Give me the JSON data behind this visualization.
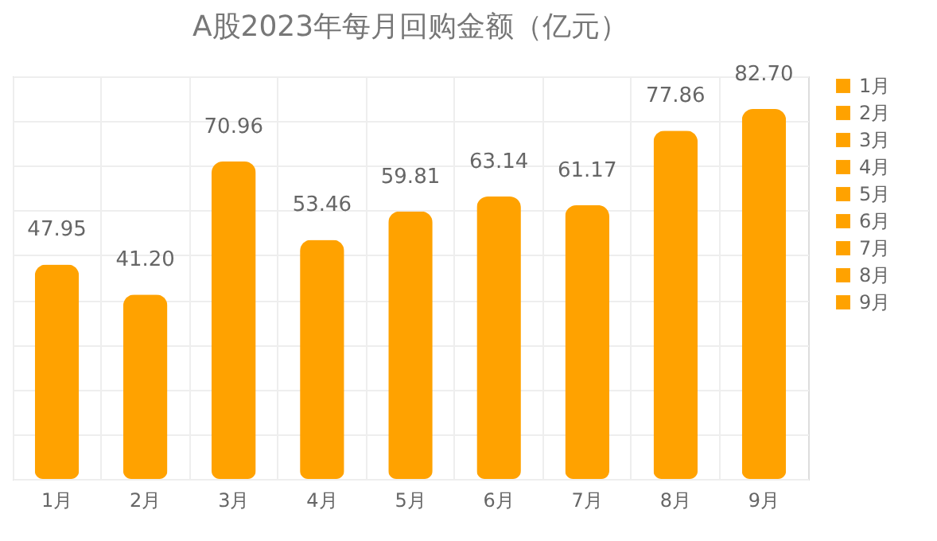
{
  "chart_data": {
    "type": "bar",
    "title": "A股2023年每月回购金额（亿元）",
    "categories": [
      "1月",
      "2月",
      "3月",
      "4月",
      "5月",
      "6月",
      "7月",
      "8月",
      "9月"
    ],
    "series": [
      {
        "name": "1月",
        "color": "#ffa200",
        "values": [
          47.95,
          null,
          null,
          null,
          null,
          null,
          null,
          null,
          null
        ],
        "value_labels": [
          "47.95",
          null,
          null,
          null,
          null,
          null,
          null,
          null,
          null
        ]
      },
      {
        "name": "2月",
        "color": "#ffa200",
        "values": [
          null,
          41.2,
          null,
          null,
          null,
          null,
          null,
          null,
          null
        ],
        "value_labels": [
          null,
          "41.20",
          null,
          null,
          null,
          null,
          null,
          null,
          null
        ]
      },
      {
        "name": "3月",
        "color": "#ffa200",
        "values": [
          null,
          null,
          70.96,
          null,
          null,
          null,
          null,
          null,
          null
        ],
        "value_labels": [
          null,
          null,
          "70.96",
          null,
          null,
          null,
          null,
          null,
          null
        ]
      },
      {
        "name": "4月",
        "color": "#ffa200",
        "values": [
          null,
          null,
          null,
          53.46,
          null,
          null,
          null,
          null,
          null
        ],
        "value_labels": [
          null,
          null,
          null,
          "53.46",
          null,
          null,
          null,
          null,
          null
        ]
      },
      {
        "name": "5月",
        "color": "#ffa200",
        "values": [
          null,
          null,
          null,
          null,
          59.81,
          null,
          null,
          null,
          null
        ],
        "value_labels": [
          null,
          null,
          null,
          null,
          "59.81",
          null,
          null,
          null,
          null
        ]
      },
      {
        "name": "6月",
        "color": "#ffa200",
        "values": [
          null,
          null,
          null,
          null,
          null,
          63.14,
          null,
          null,
          null
        ],
        "value_labels": [
          null,
          null,
          null,
          null,
          null,
          "63.14",
          null,
          null,
          null
        ]
      },
      {
        "name": "7月",
        "color": "#ffa200",
        "values": [
          null,
          null,
          null,
          null,
          null,
          null,
          61.17,
          null,
          null
        ],
        "value_labels": [
          null,
          null,
          null,
          null,
          null,
          null,
          "61.17",
          null,
          null
        ]
      },
      {
        "name": "8月",
        "color": "#ffa200",
        "values": [
          null,
          null,
          null,
          null,
          null,
          null,
          null,
          77.86,
          null
        ],
        "value_labels": [
          null,
          null,
          null,
          null,
          null,
          null,
          null,
          "77.86",
          null
        ]
      },
      {
        "name": "9月",
        "color": "#ffa200",
        "values": [
          null,
          null,
          null,
          null,
          null,
          null,
          null,
          null,
          82.7
        ],
        "value_labels": [
          null,
          null,
          null,
          null,
          null,
          null,
          null,
          null,
          "82.70"
        ]
      }
    ],
    "ylim": [
      0,
      90
    ],
    "grid": true,
    "legend": "right",
    "tick_labels": "x"
  }
}
